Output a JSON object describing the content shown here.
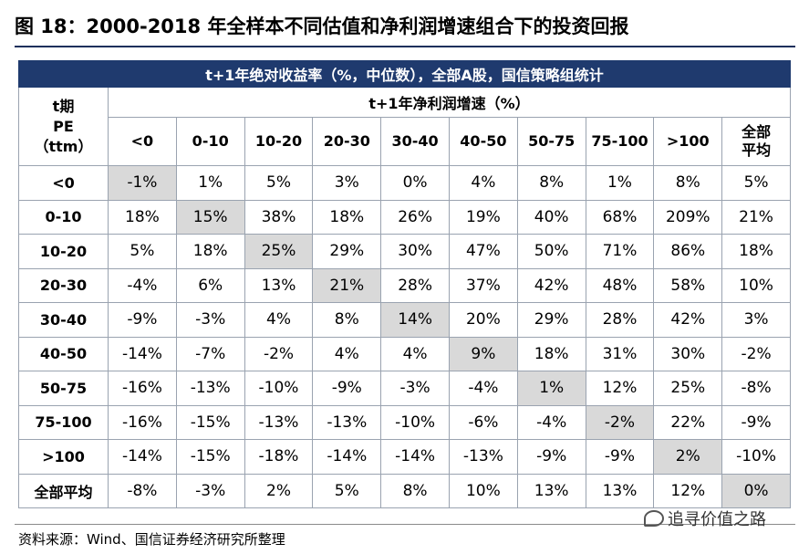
{
  "title": "图 18：2000-2018 年全样本不同估值和净利润增速组合下的投资回报",
  "table": {
    "main_header": "t+1年绝对收益率（%，中位数），全部A股，国信策略组统计",
    "corner_lines": [
      "t期",
      "PE",
      "（ttm）"
    ],
    "col_group_header": "t+1年净利润增速（%）",
    "columns": [
      "<0",
      "0-10",
      "10-20",
      "20-30",
      "30-40",
      "40-50",
      "50-75",
      "75-100",
      ">100",
      "全部平均"
    ],
    "rows": [
      {
        "label": "<0",
        "values": [
          "-1%",
          "1%",
          "5%",
          "3%",
          "0%",
          "4%",
          "8%",
          "1%",
          "8%",
          "5%"
        ]
      },
      {
        "label": "0-10",
        "values": [
          "18%",
          "15%",
          "38%",
          "18%",
          "26%",
          "19%",
          "40%",
          "68%",
          "209%",
          "21%"
        ]
      },
      {
        "label": "10-20",
        "values": [
          "5%",
          "18%",
          "25%",
          "29%",
          "30%",
          "47%",
          "50%",
          "71%",
          "86%",
          "18%"
        ]
      },
      {
        "label": "20-30",
        "values": [
          "-4%",
          "6%",
          "13%",
          "21%",
          "28%",
          "37%",
          "42%",
          "48%",
          "58%",
          "10%"
        ]
      },
      {
        "label": "30-40",
        "values": [
          "-9%",
          "-3%",
          "4%",
          "8%",
          "14%",
          "20%",
          "29%",
          "28%",
          "42%",
          "3%"
        ]
      },
      {
        "label": "40-50",
        "values": [
          "-14%",
          "-7%",
          "-2%",
          "4%",
          "4%",
          "9%",
          "18%",
          "31%",
          "30%",
          "-2%"
        ]
      },
      {
        "label": "50-75",
        "values": [
          "-16%",
          "-13%",
          "-10%",
          "-9%",
          "-3%",
          "-4%",
          "1%",
          "12%",
          "25%",
          "-8%"
        ]
      },
      {
        "label": "75-100",
        "values": [
          "-16%",
          "-15%",
          "-13%",
          "-13%",
          "-10%",
          "-6%",
          "-4%",
          "-2%",
          "22%",
          "-9%"
        ]
      },
      {
        "label": ">100",
        "values": [
          "-14%",
          "-15%",
          "-18%",
          "-14%",
          "-14%",
          "-13%",
          "-9%",
          "-9%",
          "2%",
          "-10%"
        ]
      },
      {
        "label": "全部平均",
        "values": [
          "-8%",
          "-3%",
          "2%",
          "5%",
          "8%",
          "10%",
          "13%",
          "13%",
          "12%",
          "0%"
        ]
      }
    ],
    "header_color": "#1f3a6e",
    "highlight_color": "#d9d9d9"
  },
  "footer": "资料来源：Wind、国信证券经济研究所整理",
  "watermark": "追寻价值之路",
  "watermark_icon": "wechat-icon"
}
